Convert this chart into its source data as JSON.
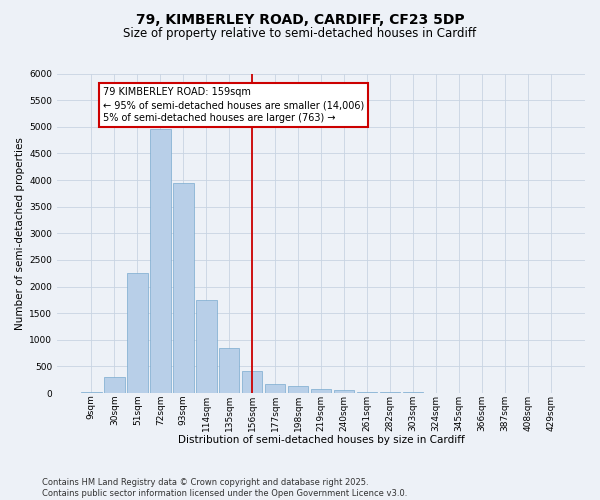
{
  "title_line1": "79, KIMBERLEY ROAD, CARDIFF, CF23 5DP",
  "title_line2": "Size of property relative to semi-detached houses in Cardiff",
  "xlabel": "Distribution of semi-detached houses by size in Cardiff",
  "ylabel": "Number of semi-detached properties",
  "categories": [
    "9sqm",
    "30sqm",
    "51sqm",
    "72sqm",
    "93sqm",
    "114sqm",
    "135sqm",
    "156sqm",
    "177sqm",
    "198sqm",
    "219sqm",
    "240sqm",
    "261sqm",
    "282sqm",
    "303sqm",
    "324sqm",
    "345sqm",
    "366sqm",
    "387sqm",
    "408sqm",
    "429sqm"
  ],
  "values": [
    15,
    300,
    2250,
    4950,
    3950,
    1750,
    850,
    420,
    170,
    125,
    75,
    50,
    25,
    18,
    12,
    8,
    5,
    3,
    2,
    1,
    1
  ],
  "bar_color": "#b8cfe8",
  "bar_edge_color": "#7aaacf",
  "grid_color": "#c8d4e2",
  "bg_color": "#edf1f7",
  "vline_x": 7,
  "vline_color": "#cc0000",
  "annotation_text": "79 KIMBERLEY ROAD: 159sqm\n← 95% of semi-detached houses are smaller (14,006)\n5% of semi-detached houses are larger (763) →",
  "annotation_box_edgecolor": "#cc0000",
  "annotation_fill": "#ffffff",
  "ylim": [
    0,
    6000
  ],
  "yticks": [
    0,
    500,
    1000,
    1500,
    2000,
    2500,
    3000,
    3500,
    4000,
    4500,
    5000,
    5500,
    6000
  ],
  "footnote_line1": "Contains HM Land Registry data © Crown copyright and database right 2025.",
  "footnote_line2": "Contains public sector information licensed under the Open Government Licence v3.0.",
  "title_fontsize": 10,
  "subtitle_fontsize": 8.5,
  "axis_label_fontsize": 7.5,
  "tick_fontsize": 6.5,
  "annot_fontsize": 7,
  "footnote_fontsize": 6
}
